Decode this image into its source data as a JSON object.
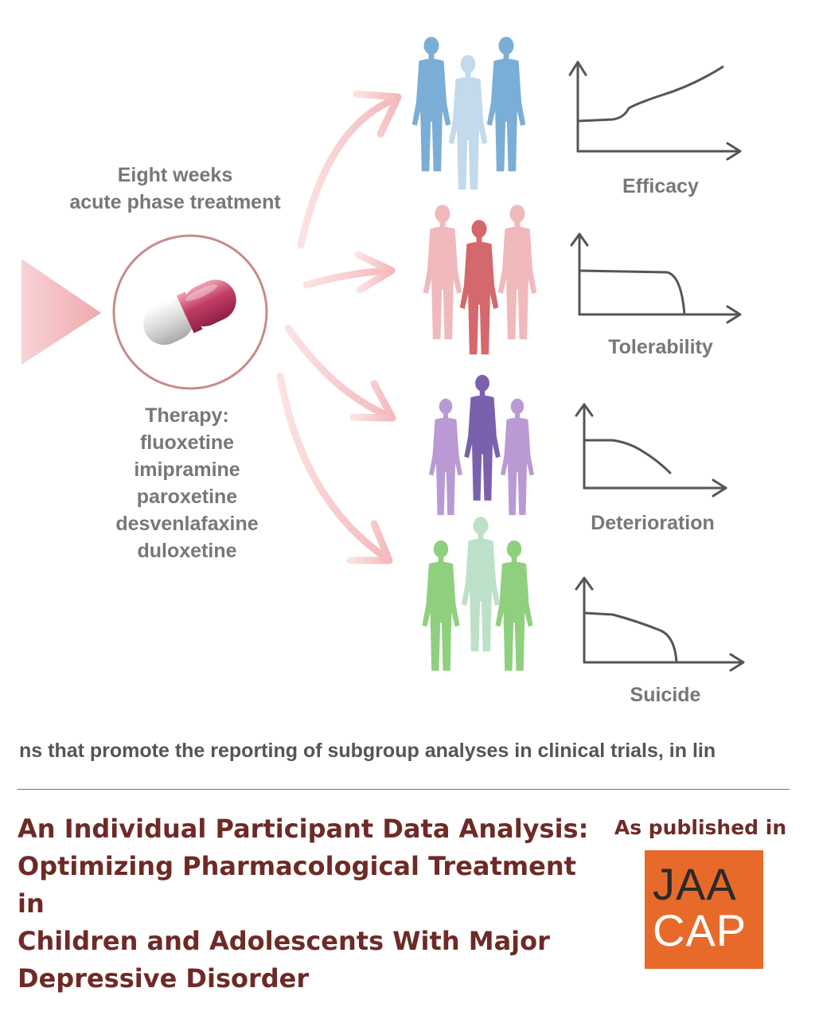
{
  "diagram": {
    "phase_label": [
      "Eight weeks",
      "acute phase treatment"
    ],
    "therapy_label": [
      "Therapy:",
      "fluoxetine",
      "imipramine",
      "paroxetine",
      "desvenlafaxine",
      "duloxetine"
    ],
    "outcomes": [
      {
        "label": "Efficacy",
        "color": "#7aaed6",
        "accent": "#c3d9ec"
      },
      {
        "label": "Tolerability",
        "color": "#f0b9bb",
        "accent": "#d4686d"
      },
      {
        "label": "Deterioration",
        "color": "#b99ad4",
        "accent": "#7b61ad"
      },
      {
        "label": "Suicide",
        "color": "#8fd07e",
        "accent": "#bde0c9"
      }
    ]
  },
  "caption_fragment": "ns that promote the reporting of subgroup analyses in clinical trials, in lin",
  "article": {
    "title_lines": [
      "An Individual Participant Data Analysis:",
      "Optimizing Pharmacological Treatment in",
      "Children and Adolescents With Major",
      "Depressive Disorder"
    ],
    "published_label": "As published in",
    "journal_logo_lines": [
      "JAA",
      "CAP"
    ],
    "logo_color": "#e86a2b"
  }
}
